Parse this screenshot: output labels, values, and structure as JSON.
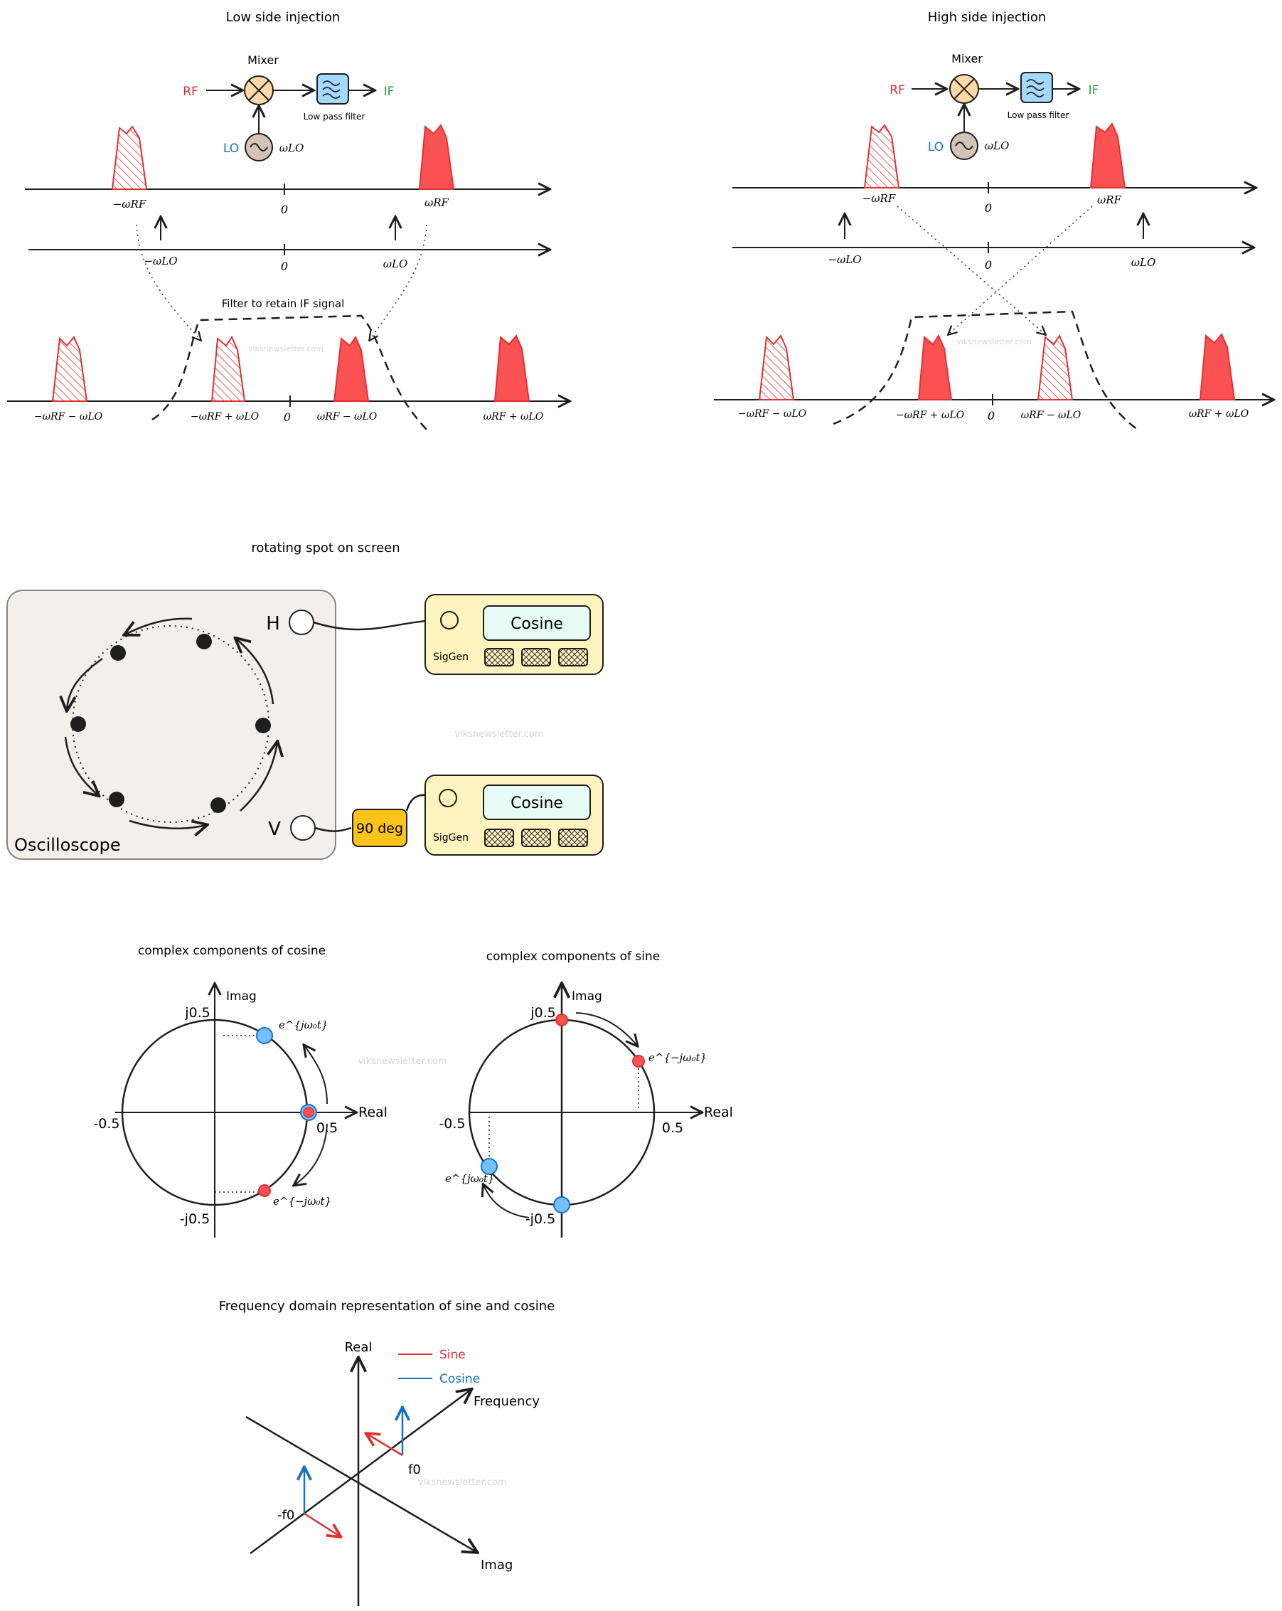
{
  "low_side": {
    "title": "Low side injection",
    "mixer": "Mixer",
    "rf": "RF",
    "lo": "LO",
    "if": "IF",
    "filter_label": "Low pass filter",
    "omega_lo": "ωLO",
    "axis1": {
      "neg": "−ωRF",
      "zero": "0",
      "pos": "ωRF"
    },
    "axis2": {
      "neg": "−ωLO",
      "zero": "0",
      "pos": "ωLO"
    },
    "filter_note": "Filter to retain IF signal",
    "axis3": {
      "a": "−ωRF − ωLO",
      "b": "−ωRF + ωLO",
      "zero": "0",
      "c": "ωRF − ωLO",
      "d": "ωRF + ωLO"
    }
  },
  "high_side": {
    "title": "High side injection",
    "mixer": "Mixer",
    "rf": "RF",
    "lo": "LO",
    "if": "IF",
    "filter_label": "Low pass filter",
    "omega_lo": "ωLO",
    "axis1": {
      "neg": "−ωRF",
      "zero": "0",
      "pos": "ωRF"
    },
    "axis2": {
      "neg": "−ωLO",
      "zero": "0",
      "pos": "ωLO"
    },
    "axis3": {
      "a": "−ωRF − ωLO",
      "b": "−ωRF + ωLO",
      "zero": "0",
      "c": "ωRF − ωLO",
      "d": "ωRF + ωLO"
    }
  },
  "oscilloscope": {
    "title": "rotating spot on screen",
    "label": "Oscilloscope",
    "h": "H",
    "v": "V",
    "sig1": {
      "display": "Cosine",
      "name": "SigGen"
    },
    "sig2": {
      "display": "Cosine",
      "name": "SigGen"
    },
    "phase": "90 deg"
  },
  "cosine_circle": {
    "title": "complex components of cosine",
    "imag": "Imag",
    "real": "Real",
    "top": "j0.5",
    "bottom": "-j0.5",
    "left": "-0.5",
    "right": "0.5",
    "pos": "e^{jω₀t}",
    "neg": "e^{−jω₀t}"
  },
  "sine_circle": {
    "title": "complex components of sine",
    "imag": "Imag",
    "real": "Real",
    "top": "j0.5",
    "bottom": "-j0.5",
    "left": "-0.5",
    "right": "0.5",
    "pos": "e^{jω₀t}",
    "neg": "e^{−jω₀t}"
  },
  "freq_domain": {
    "title": "Frequency domain representation of sine and cosine",
    "real": "Real",
    "imag": "Imag",
    "frequency": "Frequency",
    "f0": "f0",
    "neg_f0": "-f0",
    "legend": [
      {
        "label": "Sine",
        "color": "#e03131"
      },
      {
        "label": "Cosine",
        "color": "#1971c2"
      }
    ]
  },
  "watermark": "viksnewsletter.com",
  "colors": {
    "red": "#fa5252",
    "blue": "#1971c2",
    "green": "#2f9e44",
    "mixer": "#ffd8a8",
    "filter": "#a5d8ff",
    "lo": "#d4c4b7",
    "scope": "#f3f0ec",
    "siggen": "#fff3bf",
    "display": "#e6fcf5",
    "phase": "#fcc419",
    "dot_blue": "#74c0fc"
  }
}
